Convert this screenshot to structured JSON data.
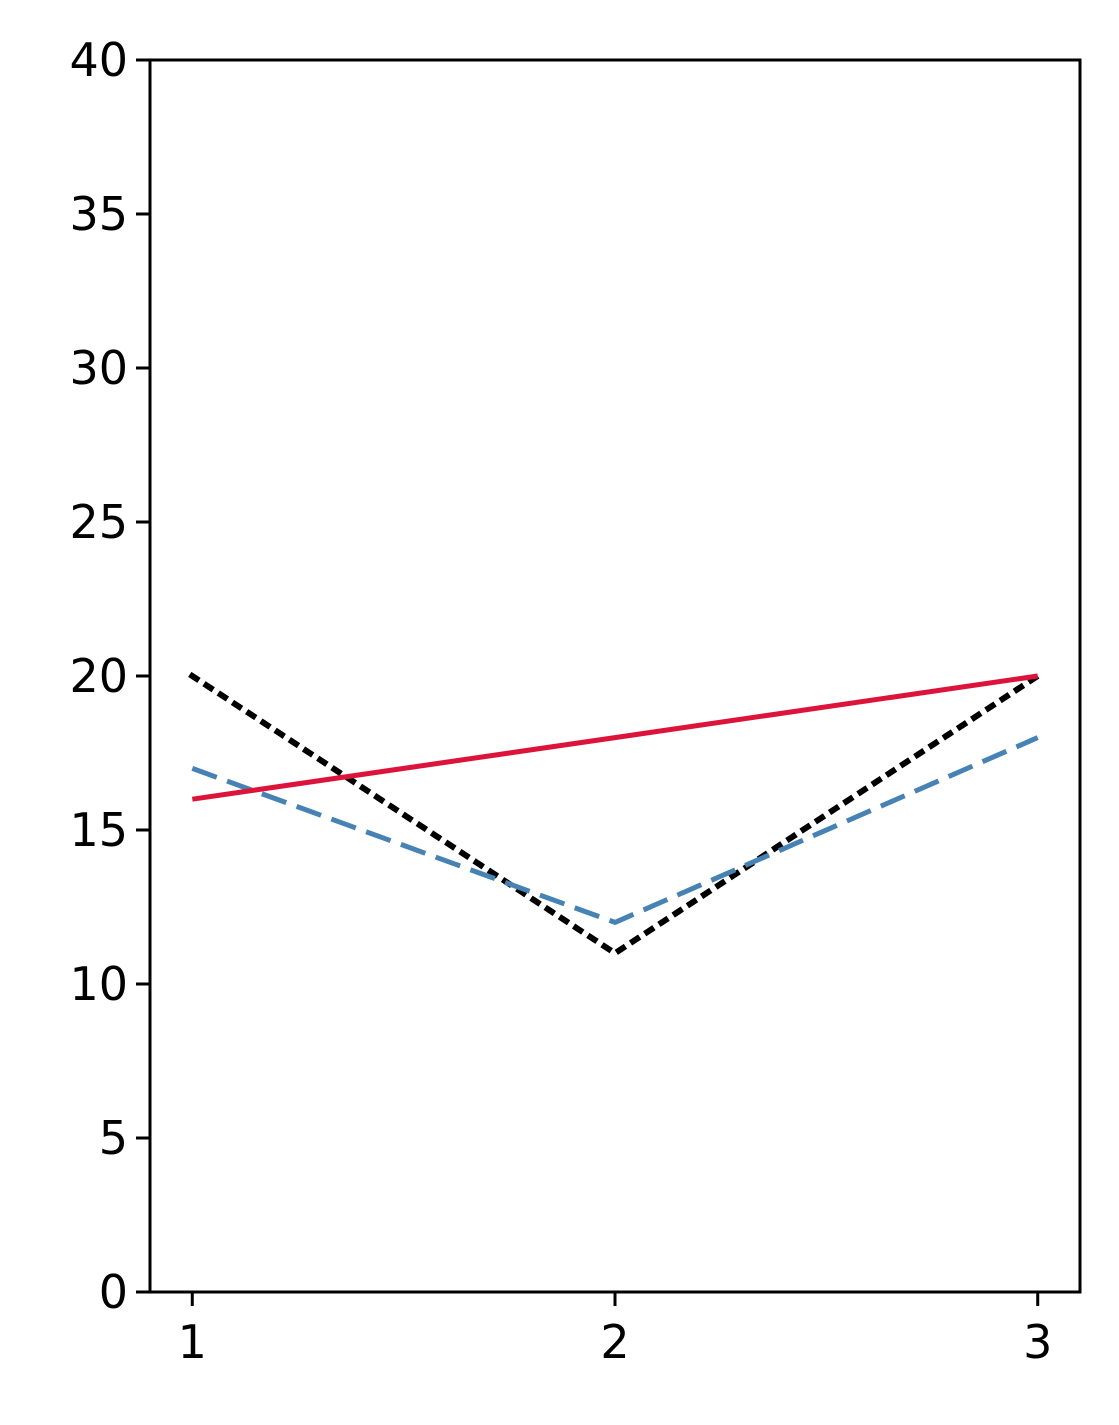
{
  "chart_data": {
    "type": "line",
    "x": [
      1,
      2,
      3
    ],
    "xticks": [
      "1",
      "2",
      "3"
    ],
    "yticks": [
      "0",
      "5",
      "10",
      "15",
      "20",
      "25",
      "30",
      "35",
      "40"
    ],
    "ylim": [
      0,
      40
    ],
    "grid": false,
    "series": [
      {
        "values": [
          20,
          11,
          20
        ],
        "color": "#000000",
        "style": "dotted"
      },
      {
        "values": [
          17,
          12,
          18
        ],
        "color": "#4682b4",
        "style": "dashed"
      },
      {
        "values": [
          16,
          18,
          20
        ],
        "color": "#dc143c",
        "style": "solid"
      }
    ]
  }
}
